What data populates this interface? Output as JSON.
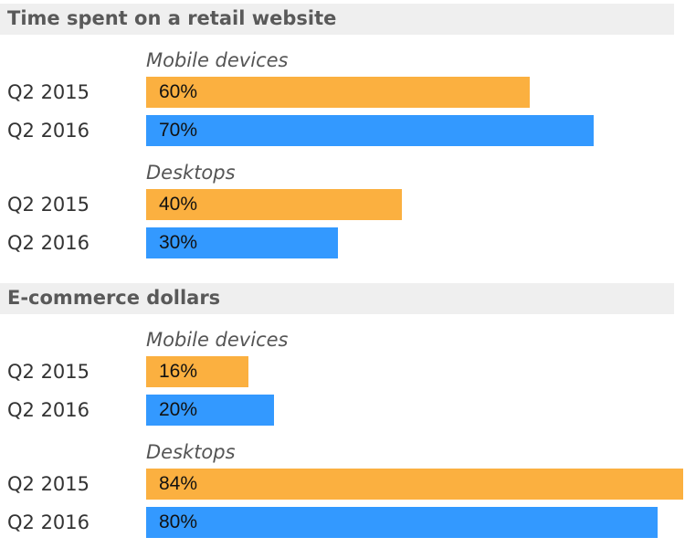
{
  "colors": {
    "q2_2015": "#fbb040",
    "q2_2016": "#3399ff",
    "header_bg": "#efefef"
  },
  "chart_data": [
    {
      "type": "bar",
      "orientation": "horizontal",
      "title": "Time spent on a retail website",
      "xlim": [
        0,
        100
      ],
      "groups": [
        {
          "name": "Mobile devices",
          "rows": [
            {
              "label": "Q2 2015",
              "value": 60,
              "value_label": "60%"
            },
            {
              "label": "Q2 2016",
              "value": 70,
              "value_label": "70%"
            }
          ]
        },
        {
          "name": "Desktops",
          "rows": [
            {
              "label": "Q2 2015",
              "value": 40,
              "value_label": "40%"
            },
            {
              "label": "Q2 2016",
              "value": 30,
              "value_label": "30%"
            }
          ]
        }
      ]
    },
    {
      "type": "bar",
      "orientation": "horizontal",
      "title": "E-commerce dollars",
      "xlim": [
        0,
        100
      ],
      "groups": [
        {
          "name": "Mobile devices",
          "rows": [
            {
              "label": "Q2 2015",
              "value": 16,
              "value_label": "16%"
            },
            {
              "label": "Q2 2016",
              "value": 20,
              "value_label": "20%"
            }
          ]
        },
        {
          "name": "Desktops",
          "rows": [
            {
              "label": "Q2 2015",
              "value": 84,
              "value_label": "84%"
            },
            {
              "label": "Q2 2016",
              "value": 80,
              "value_label": "80%"
            }
          ]
        }
      ]
    }
  ]
}
